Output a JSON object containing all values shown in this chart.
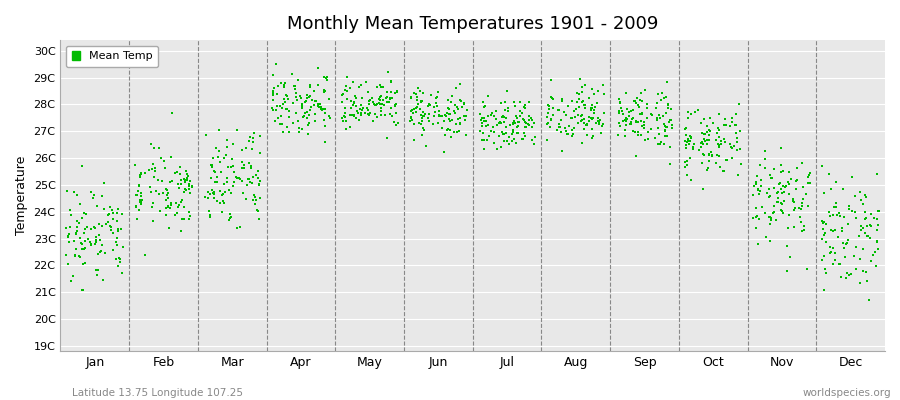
{
  "title": "Monthly Mean Temperatures 1901 - 2009",
  "ylabel": "Temperature",
  "ytick_labels": [
    "19C",
    "20C",
    "21C",
    "22C",
    "23C",
    "24C",
    "25C",
    "26C",
    "27C",
    "28C",
    "29C",
    "30C"
  ],
  "ytick_values": [
    19,
    20,
    21,
    22,
    23,
    24,
    25,
    26,
    27,
    28,
    29,
    30
  ],
  "ylim": [
    18.8,
    30.4
  ],
  "months": [
    "Jan",
    "Feb",
    "Mar",
    "Apr",
    "May",
    "Jun",
    "Jul",
    "Aug",
    "Sep",
    "Oct",
    "Nov",
    "Dec"
  ],
  "point_color": "#00BB00",
  "plot_bg": "#e8e8e8",
  "legend_label": "Mean Temp",
  "footnote_left": "Latitude 13.75 Longitude 107.25",
  "footnote_right": "worldspecies.org",
  "n_years": 109,
  "monthly_means": [
    23.1,
    24.8,
    25.2,
    28.1,
    27.9,
    27.6,
    27.3,
    27.6,
    27.4,
    26.6,
    24.5,
    23.3
  ],
  "monthly_stds": [
    1.05,
    0.75,
    0.85,
    0.55,
    0.52,
    0.48,
    0.48,
    0.52,
    0.55,
    0.65,
    0.9,
    1.0
  ],
  "seed": 42
}
